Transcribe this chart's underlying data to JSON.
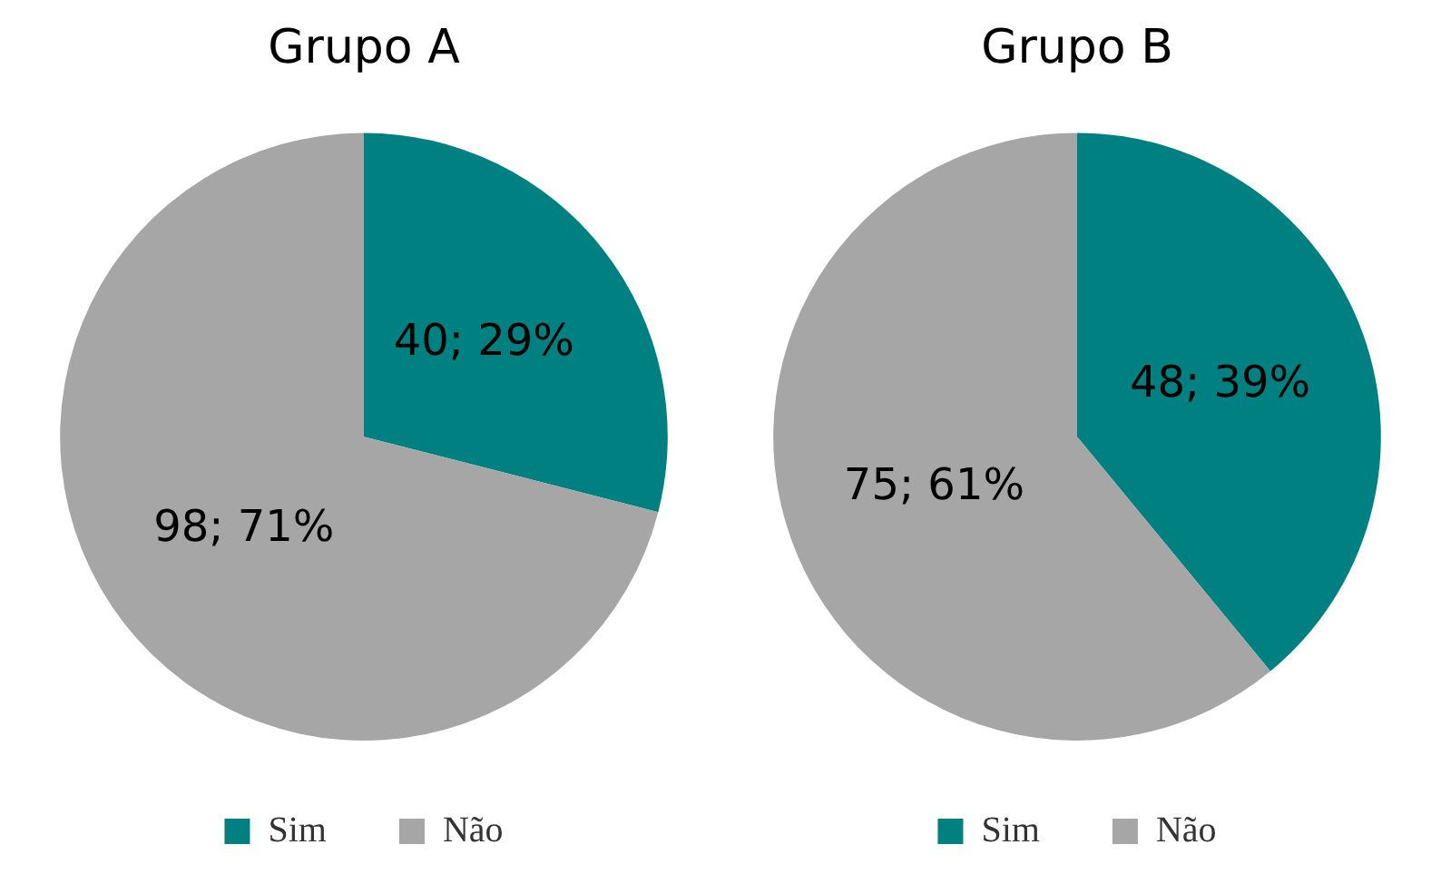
{
  "chart_data": [
    {
      "type": "pie",
      "title": "Grupo A",
      "categories": [
        "Sim",
        "Não"
      ],
      "values": [
        40,
        98
      ],
      "colors": [
        "#008080",
        "#a6a6a6"
      ],
      "value_labels": [
        "40; 29%",
        "98; 71%"
      ],
      "legend": "bottom"
    },
    {
      "type": "pie",
      "title": "Grupo B",
      "categories": [
        "Sim",
        "Não"
      ],
      "values": [
        48,
        75
      ],
      "colors": [
        "#008080",
        "#a6a6a6"
      ],
      "value_labels": [
        "48; 39%",
        "75; 61%"
      ],
      "legend": "bottom"
    }
  ]
}
